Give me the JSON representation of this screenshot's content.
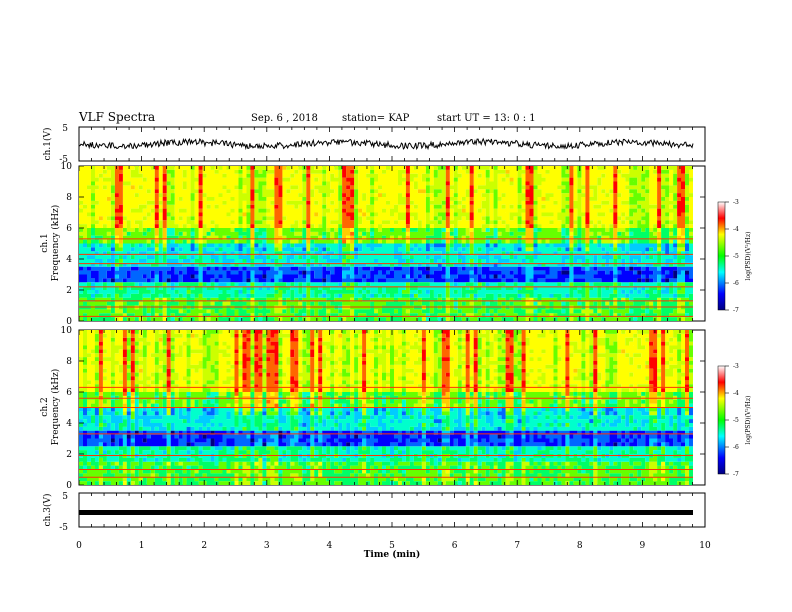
{
  "header": {
    "title": "VLF Spectra",
    "date": "Sep. 6 , 2018",
    "station": "station= KAP",
    "start": "start UT = 13: 0 : 1"
  },
  "chart_data": [
    {
      "type": "line",
      "panel": "ch1-waveform",
      "ylabel": "ch.1(V)",
      "yticks": [
        "5",
        "-5"
      ],
      "ylim": [
        -5,
        5
      ],
      "xlim": [
        0,
        10
      ]
    },
    {
      "type": "heatmap",
      "panel": "ch1-spectrogram",
      "ylabel_line1": "ch.1",
      "ylabel_line2": "Frequency (kHz)",
      "yticks": [
        0,
        2,
        4,
        6,
        8,
        10
      ],
      "ylim": [
        0,
        10
      ],
      "xlim": [
        0,
        10
      ],
      "colorbar": {
        "label": "log(PSD)(V²/Hz)",
        "ticks": [
          -3,
          -4,
          -5,
          -6,
          -7
        ],
        "range": [
          -7,
          -3
        ]
      }
    },
    {
      "type": "heatmap",
      "panel": "ch2-spectrogram",
      "ylabel_line1": "ch.2",
      "ylabel_line2": "Frequency (kHz)",
      "yticks": [
        0,
        2,
        4,
        6,
        8,
        10
      ],
      "ylim": [
        0,
        10
      ],
      "xlim": [
        0,
        10
      ],
      "colorbar": {
        "label": "log(PSD)(V²/Hz)",
        "ticks": [
          -3,
          -4,
          -5,
          -6,
          -7
        ],
        "range": [
          -7,
          -3
        ]
      }
    },
    {
      "type": "line",
      "panel": "ch3-waveform",
      "ylabel": "ch.3(V)",
      "yticks": [
        "5",
        "-5"
      ],
      "ylim": [
        -5,
        5
      ],
      "xlim": [
        0,
        10
      ]
    }
  ],
  "xaxis": {
    "label": "Time (min)",
    "ticks": [
      "0",
      "1",
      "2",
      "3",
      "4",
      "5",
      "6",
      "7",
      "8",
      "9",
      "10"
    ]
  }
}
